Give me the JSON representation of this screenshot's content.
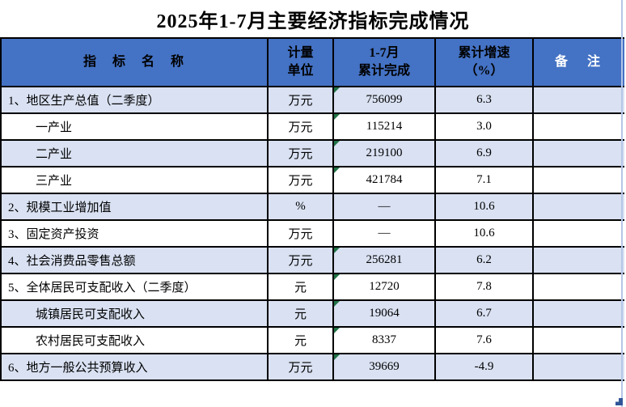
{
  "title": "2025年1-7月主要经济指标完成情况",
  "colors": {
    "header_bg": "#4472C4",
    "header_text": "#000000",
    "remark_header_text": "#FFFFFF",
    "row_alt_bg": "#D9E1F2",
    "row_bg": "#FFFFFF",
    "border": "#000000",
    "error_flag_green": "#217346",
    "sheet_gridline": "#B5C6E8",
    "fill_handle": "#2F5597"
  },
  "table": {
    "headers": [
      {
        "line1": "指　标　名　称",
        "line2": ""
      },
      {
        "line1": "计量",
        "line2": "单位"
      },
      {
        "line1": "1-7月",
        "line2": "累计完成"
      },
      {
        "line1": "累计增速",
        "line2": "（%）"
      },
      {
        "line1": "备　注",
        "line2": ""
      }
    ],
    "rows": [
      {
        "name": "1、地区生产总值（二季度）",
        "indent": false,
        "unit": "万元",
        "value": "756099",
        "growth": "6.3",
        "remark": "",
        "flag": true
      },
      {
        "name": "一产业",
        "indent": true,
        "unit": "万元",
        "value": "115214",
        "growth": "3.0",
        "remark": "",
        "flag": true
      },
      {
        "name": "二产业",
        "indent": true,
        "unit": "万元",
        "value": "219100",
        "growth": "6.9",
        "remark": "",
        "flag": true
      },
      {
        "name": "三产业",
        "indent": true,
        "unit": "万元",
        "value": "421784",
        "growth": "7.1",
        "remark": "",
        "flag": true
      },
      {
        "name": "2、规模工业增加值",
        "indent": false,
        "unit": "%",
        "value": "—",
        "growth": "10.6",
        "remark": "",
        "flag": false
      },
      {
        "name": "3、固定资产投资",
        "indent": false,
        "unit": "万元",
        "value": "—",
        "growth": "10.6",
        "remark": "",
        "flag": false
      },
      {
        "name": "4、社会消费品零售总额",
        "indent": false,
        "unit": "万元",
        "value": "256281",
        "growth": "6.2",
        "remark": "",
        "flag": true
      },
      {
        "name": "5、全体居民可支配收入（二季度）",
        "indent": false,
        "unit": "元",
        "value": "12720",
        "growth": "7.8",
        "remark": "",
        "flag": true
      },
      {
        "name": "城镇居民可支配收入",
        "indent": true,
        "unit": "元",
        "value": "19064",
        "growth": "6.7",
        "remark": "",
        "flag": true
      },
      {
        "name": "农村居民可支配收入",
        "indent": true,
        "unit": "元",
        "value": "8337",
        "growth": "7.6",
        "remark": "",
        "flag": true
      },
      {
        "name": "6、地方一般公共预算收入",
        "indent": false,
        "unit": "万元",
        "value": "39669",
        "growth": "-4.9",
        "remark": "",
        "flag": true
      }
    ]
  }
}
